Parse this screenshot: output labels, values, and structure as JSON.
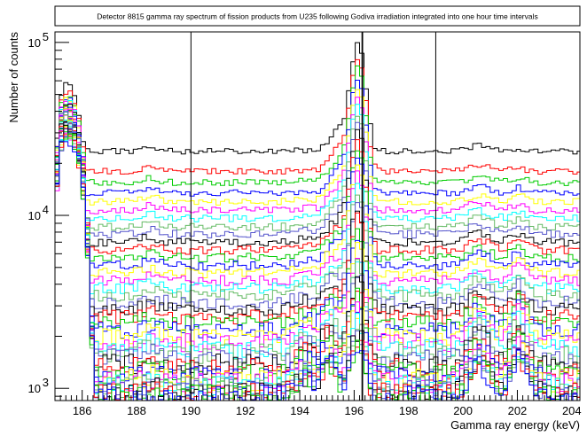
{
  "chart_data": {
    "type": "line",
    "title": "Detector 8815 gamma ray spectrum of fission products from U235 following Godiva irradiation integrated into one hour time intervals",
    "xlabel": "Gamma ray energy (keV)",
    "ylabel": "Number of counts",
    "xlim": [
      185.0,
      204.3
    ],
    "ylim": [
      850,
      115000
    ],
    "yscale": "log",
    "grid": false,
    "legend": "none",
    "x_ticks": [
      "186",
      "188",
      "190",
      "192",
      "194",
      "196",
      "198",
      "200",
      "202",
      "204"
    ],
    "y_ticks": [
      {
        "value": 1000,
        "base": "10",
        "exp": "3"
      },
      {
        "value": 10000,
        "base": "10",
        "exp": "4"
      },
      {
        "value": 100000,
        "base": "10",
        "exp": "5"
      }
    ],
    "vertical_markers": [
      190.0,
      196.3,
      199.0
    ],
    "series_colors": [
      "#000000",
      "#ff0000",
      "#00cc00",
      "#0000ff",
      "#ffff00",
      "#ff00ff",
      "#00ffff",
      "#66bb66",
      "#5555cc"
    ],
    "series": [
      {
        "baseline": 23500,
        "peak_186": 48000,
        "peak_1962": 98000
      },
      {
        "baseline": 18000,
        "peak_186": 44000,
        "peak_1962": 80000
      },
      {
        "baseline": 15500,
        "peak_186": 42000,
        "peak_1962": 70000
      },
      {
        "baseline": 13500,
        "peak_186": 41000,
        "peak_1962": 61000
      },
      {
        "baseline": 12000,
        "peak_186": 40000,
        "peak_1962": 54000
      },
      {
        "baseline": 10700,
        "peak_186": 39000,
        "peak_1962": 48000
      },
      {
        "baseline": 9600,
        "peak_186": 38000,
        "peak_1962": 43000
      },
      {
        "baseline": 8600,
        "peak_186": 37500,
        "peak_1962": 38000
      },
      {
        "baseline": 7800,
        "peak_186": 37000,
        "peak_1962": 34000
      },
      {
        "baseline": 7000,
        "peak_186": 36500,
        "peak_1962": 30000
      },
      {
        "baseline": 6300,
        "peak_186": 36000,
        "peak_1962": 27000
      },
      {
        "baseline": 5700,
        "peak_186": 35500,
        "peak_1962": 24000
      },
      {
        "baseline": 5150,
        "peak_186": 35000,
        "peak_1962": 21500
      },
      {
        "baseline": 4650,
        "peak_186": 34500,
        "peak_1962": 19000
      },
      {
        "baseline": 4200,
        "peak_186": 34000,
        "peak_1962": 17000
      },
      {
        "baseline": 3800,
        "peak_186": 33500,
        "peak_1962": 15000
      },
      {
        "baseline": 3450,
        "peak_186": 33000,
        "peak_1962": 13500
      },
      {
        "baseline": 3150,
        "peak_186": 32500,
        "peak_1962": 12000
      },
      {
        "baseline": 2850,
        "peak_186": 32000,
        "peak_1962": 10700
      },
      {
        "baseline": 2600,
        "peak_186": 31500,
        "peak_1962": 9500
      },
      {
        "baseline": 2380,
        "peak_186": 31000,
        "peak_1962": 8500
      },
      {
        "baseline": 2180,
        "peak_186": 30500,
        "peak_1962": 7600
      },
      {
        "baseline": 2000,
        "peak_186": 30000,
        "peak_1962": 6800
      },
      {
        "baseline": 1850,
        "peak_186": 29700,
        "peak_1962": 6100
      },
      {
        "baseline": 1710,
        "peak_186": 29400,
        "peak_1962": 5500
      },
      {
        "baseline": 1590,
        "peak_186": 29100,
        "peak_1962": 5000
      },
      {
        "baseline": 1480,
        "peak_186": 28800,
        "peak_1962": 4500
      },
      {
        "baseline": 1380,
        "peak_186": 28500,
        "peak_1962": 4100
      },
      {
        "baseline": 1300,
        "peak_186": 28200,
        "peak_1962": 3750
      },
      {
        "baseline": 1230,
        "peak_186": 27900,
        "peak_1962": 3450
      },
      {
        "baseline": 1170,
        "peak_186": 27600,
        "peak_1962": 3150
      },
      {
        "baseline": 1120,
        "peak_186": 27300,
        "peak_1962": 2900
      },
      {
        "baseline": 1080,
        "peak_186": 27000,
        "peak_1962": 2700
      },
      {
        "baseline": 1040,
        "peak_186": 26700,
        "peak_1962": 2500
      },
      {
        "baseline": 1010,
        "peak_186": 26400,
        "peak_1962": 2350
      },
      {
        "baseline": 980,
        "peak_186": 26100,
        "peak_1962": 2200
      },
      {
        "baseline": 955,
        "peak_186": 25800,
        "peak_1962": 2080
      },
      {
        "baseline": 935,
        "peak_186": 25500,
        "peak_1962": 1970
      },
      {
        "baseline": 915,
        "peak_186": 25200,
        "peak_1962": 1880
      },
      {
        "baseline": 900,
        "peak_186": 24900,
        "peak_1962": 1800
      }
    ]
  }
}
